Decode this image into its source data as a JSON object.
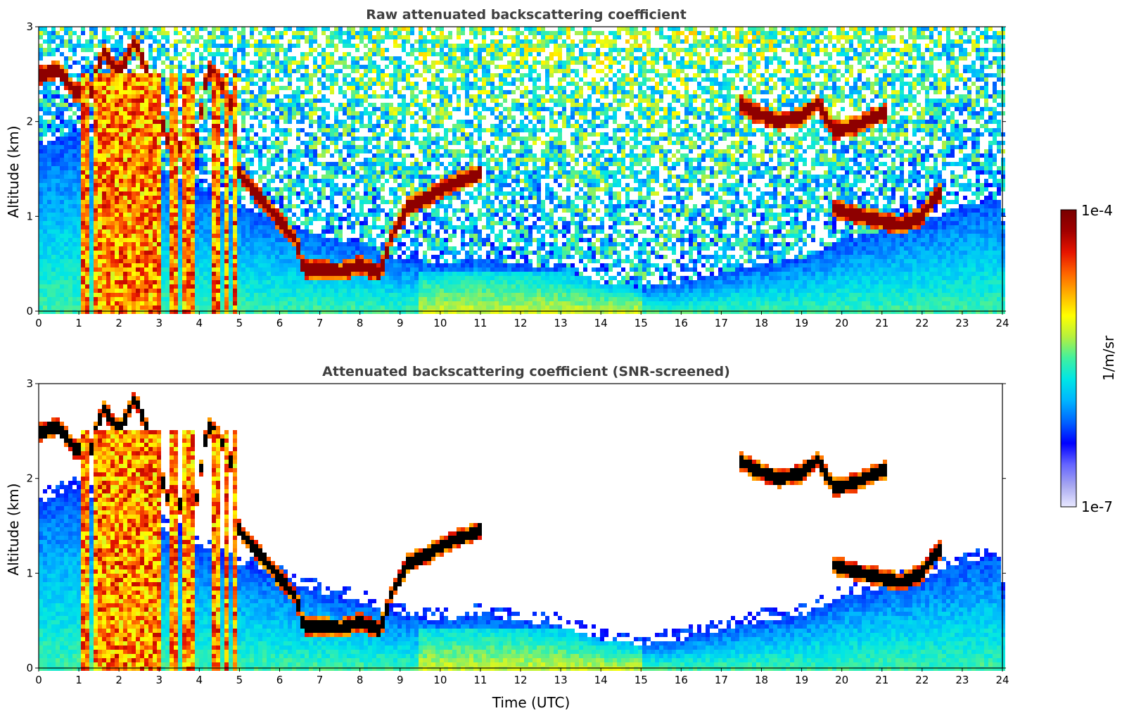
{
  "chart_data": [
    {
      "type": "heatmap",
      "title": "Raw attenuated backscattering coefficient",
      "xlabel": "",
      "ylabel": "Altitude (km)",
      "xlim": [
        0,
        24
      ],
      "ylim": [
        0,
        3
      ],
      "x_ticks": [
        "0",
        "1",
        "2",
        "3",
        "4",
        "5",
        "6",
        "7",
        "8",
        "9",
        "10",
        "11",
        "12",
        "13",
        "14",
        "15",
        "16",
        "17",
        "18",
        "19",
        "20",
        "21",
        "22",
        "23",
        "24"
      ],
      "y_ticks": [
        "0",
        "1",
        "2",
        "3"
      ],
      "screened": false,
      "features": {
        "cloud_layer": [
          [
            0,
            2.48
          ],
          [
            0.5,
            2.55
          ],
          [
            0.9,
            2.3
          ],
          [
            1.3,
            2.3
          ],
          [
            1.6,
            2.75
          ],
          [
            2.0,
            2.5
          ],
          [
            2.4,
            2.85
          ],
          [
            2.8,
            2.4
          ],
          [
            3.2,
            1.8
          ],
          [
            3.5,
            1.72
          ],
          [
            3.9,
            1.68
          ],
          [
            4.2,
            2.55
          ],
          [
            4.5,
            2.45
          ],
          [
            4.8,
            2.15
          ],
          [
            5.0,
            1.45
          ],
          [
            5.5,
            1.2
          ],
          [
            6.0,
            0.95
          ],
          [
            6.4,
            0.75
          ],
          [
            6.6,
            0.45
          ],
          [
            7.5,
            0.42
          ],
          [
            8.0,
            0.48
          ],
          [
            8.5,
            0.4
          ],
          [
            8.8,
            0.8
          ],
          [
            9.2,
            1.1
          ],
          [
            9.7,
            1.2
          ],
          [
            10.3,
            1.35
          ],
          [
            11.0,
            1.45
          ],
          [
            11.05,
            null
          ],
          [
            17.4,
            2.2
          ],
          [
            17.8,
            2.1
          ],
          [
            18.4,
            2.0
          ],
          [
            19.0,
            2.05
          ],
          [
            19.4,
            2.2
          ],
          [
            19.8,
            1.9
          ],
          [
            20.3,
            1.95
          ],
          [
            21.1,
            2.1
          ],
          [
            21.2,
            null
          ],
          [
            19.8,
            1.08
          ],
          [
            20.5,
            1.0
          ],
          [
            21.0,
            0.95
          ],
          [
            21.5,
            0.9
          ],
          [
            22.0,
            1.0
          ],
          [
            22.3,
            1.2
          ],
          [
            22.5,
            1.25
          ]
        ],
        "aerosol_top": [
          [
            0,
            1.75
          ],
          [
            1,
            1.9
          ],
          [
            2,
            1.6
          ],
          [
            3,
            1.5
          ],
          [
            4,
            1.3
          ],
          [
            5,
            1.1
          ],
          [
            6,
            0.95
          ],
          [
            7,
            0.8
          ],
          [
            8,
            0.7
          ],
          [
            9,
            0.55
          ],
          [
            10,
            0.5
          ],
          [
            11,
            0.55
          ],
          [
            12,
            0.5
          ],
          [
            13,
            0.45
          ],
          [
            14,
            0.3
          ],
          [
            15,
            0.25
          ],
          [
            16,
            0.3
          ],
          [
            17,
            0.4
          ],
          [
            18,
            0.5
          ],
          [
            19,
            0.55
          ],
          [
            20,
            0.75
          ],
          [
            21,
            0.85
          ],
          [
            22,
            0.95
          ],
          [
            23,
            1.1
          ],
          [
            24,
            1.2
          ]
        ],
        "precipitation_columns": [
          [
            1.0,
            1.25
          ],
          [
            1.4,
            3.1
          ],
          [
            3.25,
            3.42
          ],
          [
            3.55,
            3.85
          ],
          [
            4.35,
            4.5
          ],
          [
            4.6,
            4.7
          ],
          [
            4.85,
            4.95
          ]
        ],
        "near_surface_aerosol": [
          [
            9.5,
            12.8
          ],
          [
            12.8,
            15.0
          ]
        ]
      }
    },
    {
      "type": "heatmap",
      "title": "Attenuated backscattering coefficient (SNR-screened)",
      "xlabel": "Time (UTC)",
      "ylabel": "Altitude (km)",
      "xlim": [
        0,
        24
      ],
      "ylim": [
        0,
        3
      ],
      "x_ticks": [
        "0",
        "1",
        "2",
        "3",
        "4",
        "5",
        "6",
        "7",
        "8",
        "9",
        "10",
        "11",
        "12",
        "13",
        "14",
        "15",
        "16",
        "17",
        "18",
        "19",
        "20",
        "21",
        "22",
        "23",
        "24"
      ],
      "y_ticks": [
        "0",
        "1",
        "2",
        "3"
      ],
      "screened": true
    }
  ],
  "colorbar": {
    "min_label": "1e-7",
    "max_label": "1e-4",
    "unit_label": "1/m/sr",
    "scale": "log",
    "colormap": [
      "#e8e8ff",
      "#a8a8f0",
      "#6464ff",
      "#0000ff",
      "#0064ff",
      "#00b4ff",
      "#00e6e6",
      "#40f0a0",
      "#b4f040",
      "#ffff00",
      "#ffb400",
      "#ff6400",
      "#e61400",
      "#a00000",
      "#780000"
    ]
  }
}
